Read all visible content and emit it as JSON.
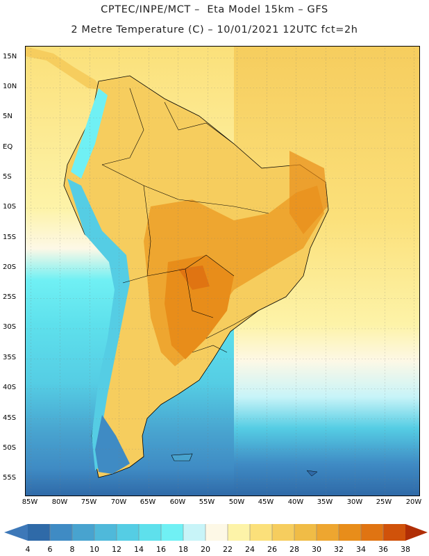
{
  "header": {
    "line1": "CPTEC/INPE/MCT –  Eta Model 15km – GFS",
    "line2": "2 Metre Temperature (C) – 10/01/2021 12UTC fct=2h"
  },
  "map": {
    "lat_labels": [
      "15N",
      "10N",
      "5N",
      "EQ",
      "5S",
      "10S",
      "15S",
      "20S",
      "25S",
      "30S",
      "35S",
      "40S",
      "45S",
      "50S",
      "55S"
    ],
    "lon_labels": [
      "85W",
      "80W",
      "75W",
      "70W",
      "65W",
      "60W",
      "55W",
      "50W",
      "45W",
      "40W",
      "35W",
      "30W",
      "25W",
      "20W"
    ]
  },
  "colorbar": {
    "labels": [
      "4",
      "6",
      "8",
      "10",
      "12",
      "14",
      "16",
      "18",
      "20",
      "22",
      "24",
      "26",
      "28",
      "30",
      "32",
      "34",
      "36",
      "38"
    ],
    "colors": [
      "#3d78b8",
      "#2f6aa8",
      "#3f8bc4",
      "#48a3cf",
      "#4fb9da",
      "#55cde4",
      "#5ee0ec",
      "#70f0f4",
      "#c8f4f8",
      "#fdf8e6",
      "#fdf3a8",
      "#fbe07a",
      "#f6cd5e",
      "#f0bc46",
      "#eea630",
      "#e88d1a",
      "#e07412",
      "#d0520a",
      "#c4400a",
      "#b02e06"
    ]
  }
}
